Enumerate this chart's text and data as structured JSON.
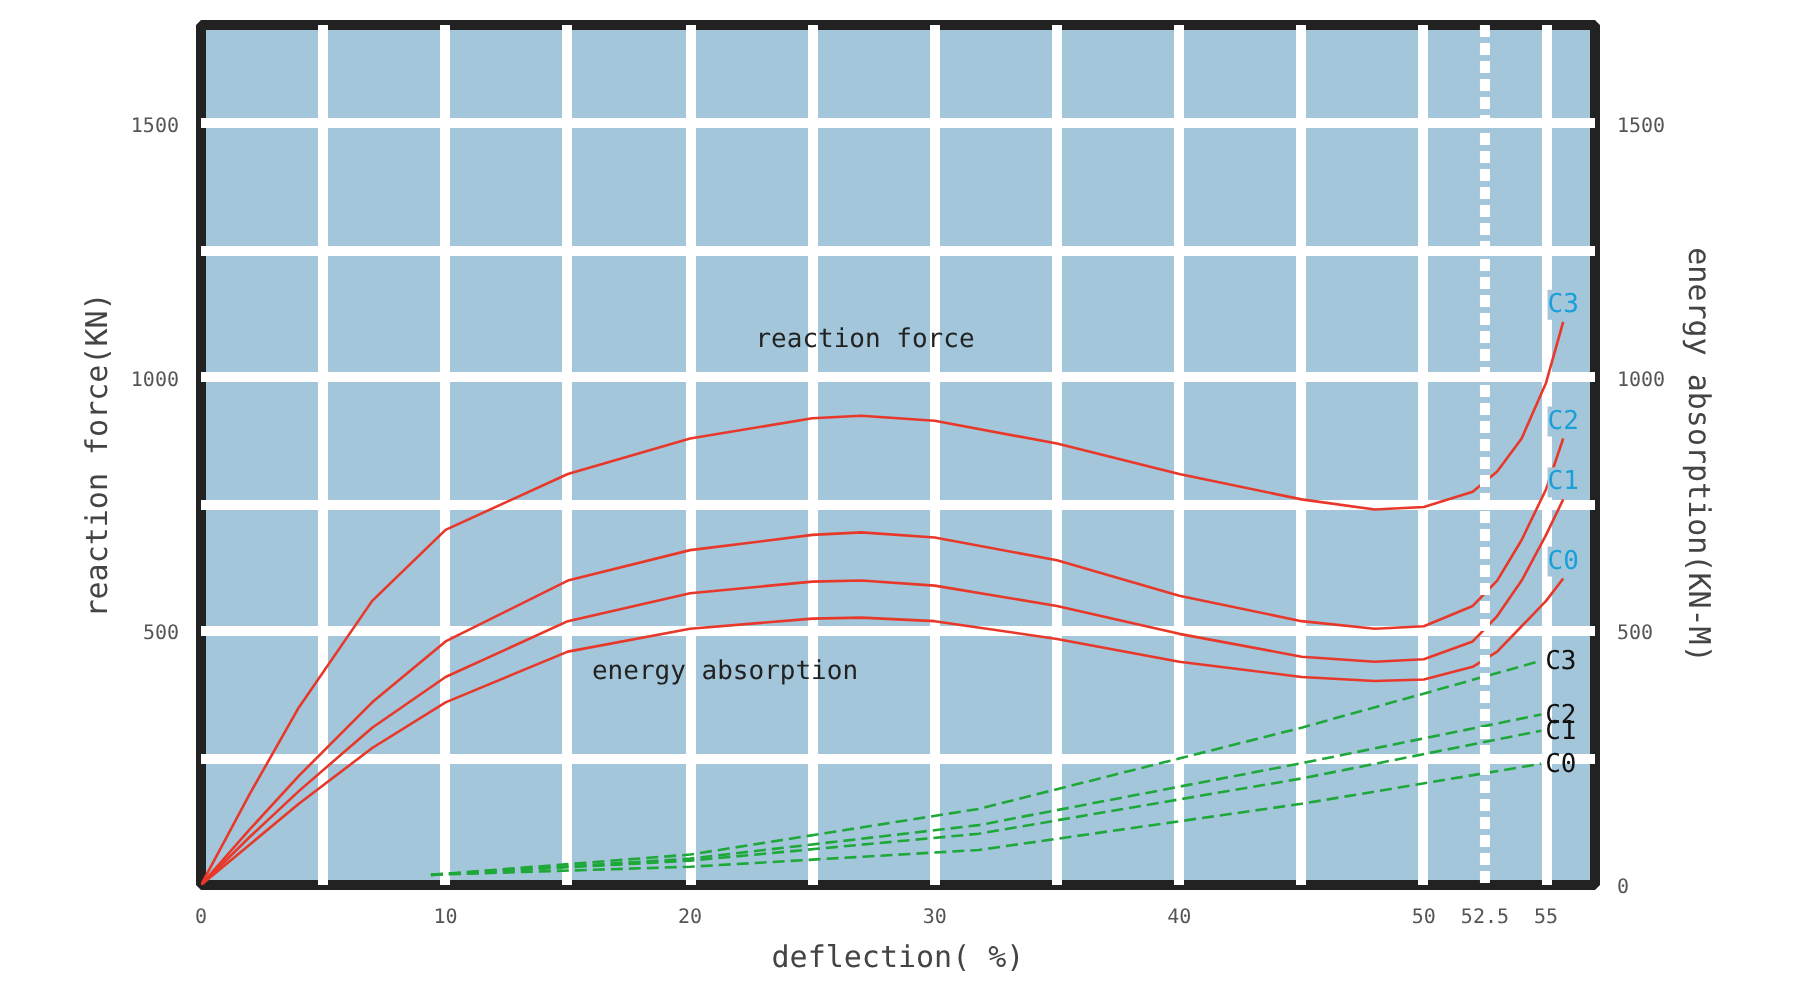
{
  "chart_data": {
    "type": "line",
    "xlabel": "deflection( %)",
    "ylabel": "reaction force(KN)",
    "y2label": "energy absorption(KN-M)",
    "xlim": [
      0,
      57
    ],
    "ylim": [
      0,
      1695
    ],
    "y2lim": [
      0,
      1695
    ],
    "xticks": [
      0,
      {
        "value": 5,
        "label": null
      },
      10,
      {
        "value": 15,
        "label": null
      },
      20,
      {
        "value": 25,
        "label": null
      },
      30,
      {
        "value": 35,
        "label": null
      },
      40,
      {
        "value": 45,
        "label": null
      },
      50,
      52.5,
      55
    ],
    "yticks": [
      {
        "value": 250,
        "label": null
      },
      500,
      {
        "value": 750,
        "label": null
      },
      1000,
      {
        "value": 1250,
        "label": null
      },
      1500
    ],
    "y2ticks": [
      0,
      500,
      1000,
      1500
    ],
    "grid": true,
    "marker": "none",
    "ref_lines": [
      {
        "axis": "x",
        "value": 52.5,
        "label": null,
        "color": "#ffffff",
        "line_style": "dashed"
      }
    ],
    "annotations": [
      "reaction force",
      "energy absorption"
    ],
    "series": [
      {
        "name": "C3",
        "color": "#e8382a",
        "line_style": "solid",
        "x": [
          0,
          2,
          4,
          7,
          10,
          15,
          20,
          25,
          27,
          30,
          35,
          40,
          45,
          48,
          50,
          52,
          53,
          54,
          55,
          55.7
        ],
        "values": [
          0,
          180,
          350,
          560,
          700,
          810,
          880,
          920,
          925,
          915,
          870,
          810,
          760,
          740,
          745,
          775,
          815,
          880,
          990,
          1110
        ]
      },
      {
        "name": "C2",
        "color": "#e8382a",
        "line_style": "solid",
        "x": [
          0,
          2,
          4,
          7,
          10,
          15,
          20,
          25,
          27,
          30,
          35,
          40,
          45,
          48,
          50,
          52,
          53,
          54,
          55,
          55.7
        ],
        "values": [
          0,
          110,
          215,
          360,
          480,
          600,
          660,
          690,
          695,
          685,
          640,
          570,
          520,
          505,
          510,
          550,
          600,
          680,
          780,
          880
        ]
      },
      {
        "name": "C1",
        "color": "#e8382a",
        "line_style": "solid",
        "x": [
          0,
          2,
          4,
          7,
          10,
          15,
          20,
          25,
          27,
          30,
          35,
          40,
          45,
          48,
          50,
          52,
          53,
          54,
          55,
          55.7
        ],
        "values": [
          0,
          95,
          185,
          310,
          410,
          520,
          575,
          598,
          600,
          590,
          550,
          495,
          450,
          440,
          445,
          480,
          530,
          600,
          690,
          760
        ]
      },
      {
        "name": "C0",
        "color": "#e8382a",
        "line_style": "solid",
        "x": [
          0,
          2,
          4,
          7,
          10,
          15,
          20,
          25,
          27,
          30,
          35,
          40,
          45,
          48,
          50,
          52,
          53,
          54,
          55,
          55.7
        ],
        "values": [
          0,
          80,
          160,
          270,
          360,
          460,
          505,
          525,
          527,
          520,
          485,
          440,
          410,
          402,
          405,
          430,
          460,
          510,
          560,
          604
        ]
      },
      {
        "name": "C3",
        "color": "#1fa83a",
        "line_style": "dashed",
        "axis": "y2",
        "x": [
          9.4,
          20,
          31.8,
          45,
          54.8
        ],
        "values": [
          20,
          60,
          150,
          310,
          442
        ]
      },
      {
        "name": "C2",
        "color": "#1fa83a",
        "line_style": "dashed",
        "axis": "y2",
        "x": [
          9.4,
          20,
          31.8,
          45,
          54.8
        ],
        "values": [
          20,
          52,
          118,
          240,
          336
        ]
      },
      {
        "name": "C1",
        "color": "#1fa83a",
        "line_style": "dashed",
        "axis": "y2",
        "x": [
          9.4,
          20,
          31.8,
          45,
          54.8
        ],
        "values": [
          20,
          48,
          101,
          210,
          304
        ]
      },
      {
        "name": "C0",
        "color": "#1fa83a",
        "line_style": "dashed",
        "axis": "y2",
        "x": [
          9.4,
          20,
          31.8,
          45,
          54.8
        ],
        "values": [
          20,
          36,
          69,
          160,
          239
        ]
      }
    ]
  }
}
